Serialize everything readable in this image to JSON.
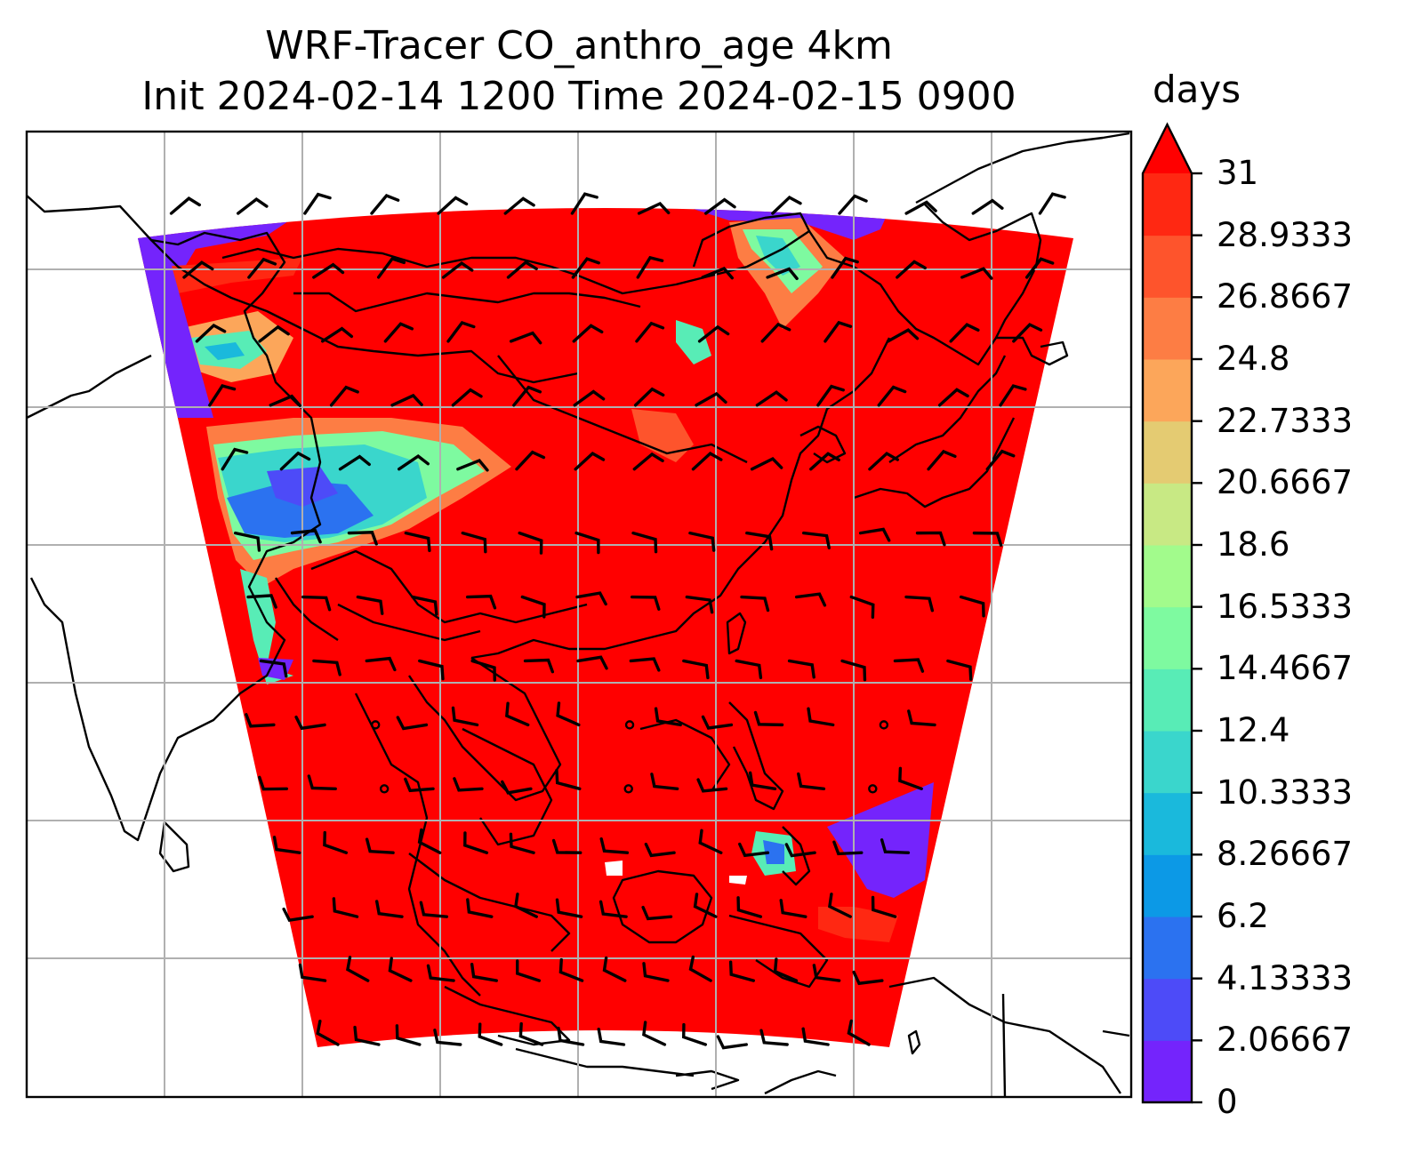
{
  "title": {
    "line1": "WRF-Tracer CO_anthro_age 4km",
    "line2": "Init 2024-02-14 1200 Time 2024-02-15 0900"
  },
  "colorbar": {
    "unit": "days",
    "extend": "max",
    "ticks": [
      "0",
      "2.06667",
      "4.13333",
      "6.2",
      "8.26667",
      "10.3333",
      "12.4",
      "14.4667",
      "16.5333",
      "18.6",
      "20.6667",
      "22.7333",
      "24.8",
      "26.8667",
      "28.9333",
      "31"
    ],
    "colors": [
      "#7424fc",
      "#4d4bf8",
      "#2b72f0",
      "#0c99e6",
      "#1ab9dc",
      "#3ad6cc",
      "#58ecb6",
      "#7efaa0",
      "#a2fb8c",
      "#c8e984",
      "#e4cb72",
      "#fca65a",
      "#fd7d44",
      "#fe542c",
      "#ff2812",
      "#ff0000"
    ]
  },
  "map": {
    "field_color": "#ff0000",
    "clean_air_color": "#7424fc",
    "grid": "on",
    "overlays": [
      "coastlines",
      "country-borders",
      "wind-barbs"
    ]
  }
}
